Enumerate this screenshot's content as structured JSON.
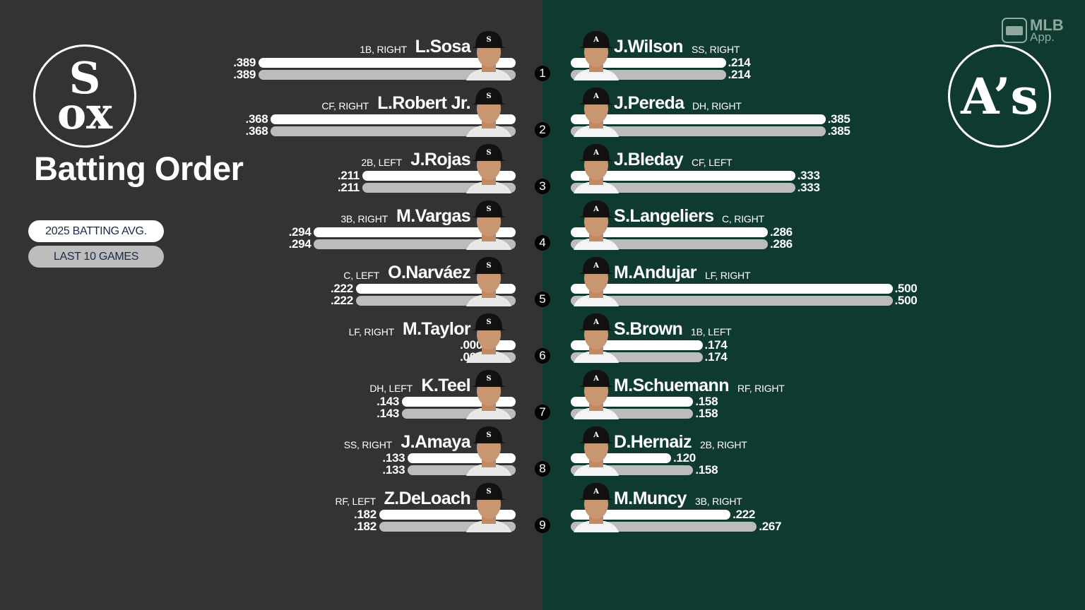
{
  "title": "Batting Order",
  "toggles": [
    {
      "label": "2025 BATTING AVG.",
      "active": true
    },
    {
      "label": "LAST 10 GAMES",
      "active": false
    }
  ],
  "branding": {
    "line1": "MLB",
    "line2": "App."
  },
  "teams": {
    "away": {
      "logo_text": "Sox",
      "color": "#333333"
    },
    "home": {
      "logo_text": "A's",
      "color": "#0f3a30"
    }
  },
  "legend": {
    "white_bar": "2025 BATTING AVG.",
    "gray_bar": "LAST 10 GAMES"
  },
  "away_lineup": [
    {
      "order": "1",
      "name": "L.Sosa",
      "pos": "1B, RIGHT",
      "avg": ".389",
      "last10": ".389"
    },
    {
      "order": "2",
      "name": "L.Robert Jr.",
      "pos": "CF, RIGHT",
      "avg": ".368",
      "last10": ".368"
    },
    {
      "order": "3",
      "name": "J.Rojas",
      "pos": "2B, LEFT",
      "avg": ".211",
      "last10": ".211"
    },
    {
      "order": "4",
      "name": "M.Vargas",
      "pos": "3B, RIGHT",
      "avg": ".294",
      "last10": ".294"
    },
    {
      "order": "5",
      "name": "O.Narváez",
      "pos": "C, LEFT",
      "avg": ".222",
      "last10": ".222"
    },
    {
      "order": "6",
      "name": "M.Taylor",
      "pos": "LF, RIGHT",
      "avg": ".000",
      "last10": ".000"
    },
    {
      "order": "7",
      "name": "K.Teel",
      "pos": "DH, LEFT",
      "avg": ".143",
      "last10": ".143"
    },
    {
      "order": "8",
      "name": "J.Amaya",
      "pos": "SS, RIGHT",
      "avg": ".133",
      "last10": ".133"
    },
    {
      "order": "9",
      "name": "Z.DeLoach",
      "pos": "RF, LEFT",
      "avg": ".182",
      "last10": ".182"
    }
  ],
  "home_lineup": [
    {
      "order": "1",
      "name": "J.Wilson",
      "pos": "SS, RIGHT",
      "avg": ".214",
      "last10": ".214"
    },
    {
      "order": "2",
      "name": "J.Pereda",
      "pos": "DH, RIGHT",
      "avg": ".385",
      "last10": ".385"
    },
    {
      "order": "3",
      "name": "J.Bleday",
      "pos": "CF, LEFT",
      "avg": ".333",
      "last10": ".333"
    },
    {
      "order": "4",
      "name": "S.Langeliers",
      "pos": "C, RIGHT",
      "avg": ".286",
      "last10": ".286"
    },
    {
      "order": "5",
      "name": "M.Andujar",
      "pos": "LF, RIGHT",
      "avg": ".500",
      "last10": ".500"
    },
    {
      "order": "6",
      "name": "S.Brown",
      "pos": "1B, LEFT",
      "avg": ".174",
      "last10": ".174"
    },
    {
      "order": "7",
      "name": "M.Schuemann",
      "pos": "RF, RIGHT",
      "avg": ".158",
      "last10": ".158"
    },
    {
      "order": "8",
      "name": "D.Hernaiz",
      "pos": "2B, RIGHT",
      "avg": ".120",
      "last10": ".158"
    },
    {
      "order": "9",
      "name": "M.Muncy",
      "pos": "3B, RIGHT",
      "avg": ".222",
      "last10": ".267"
    }
  ],
  "colors": {
    "away_bg": "#333333",
    "home_bg": "#0f3a30",
    "bar_primary": "#ffffff",
    "bar_secondary": "#bcbcbc",
    "pill_text": "#1b2a4a"
  }
}
